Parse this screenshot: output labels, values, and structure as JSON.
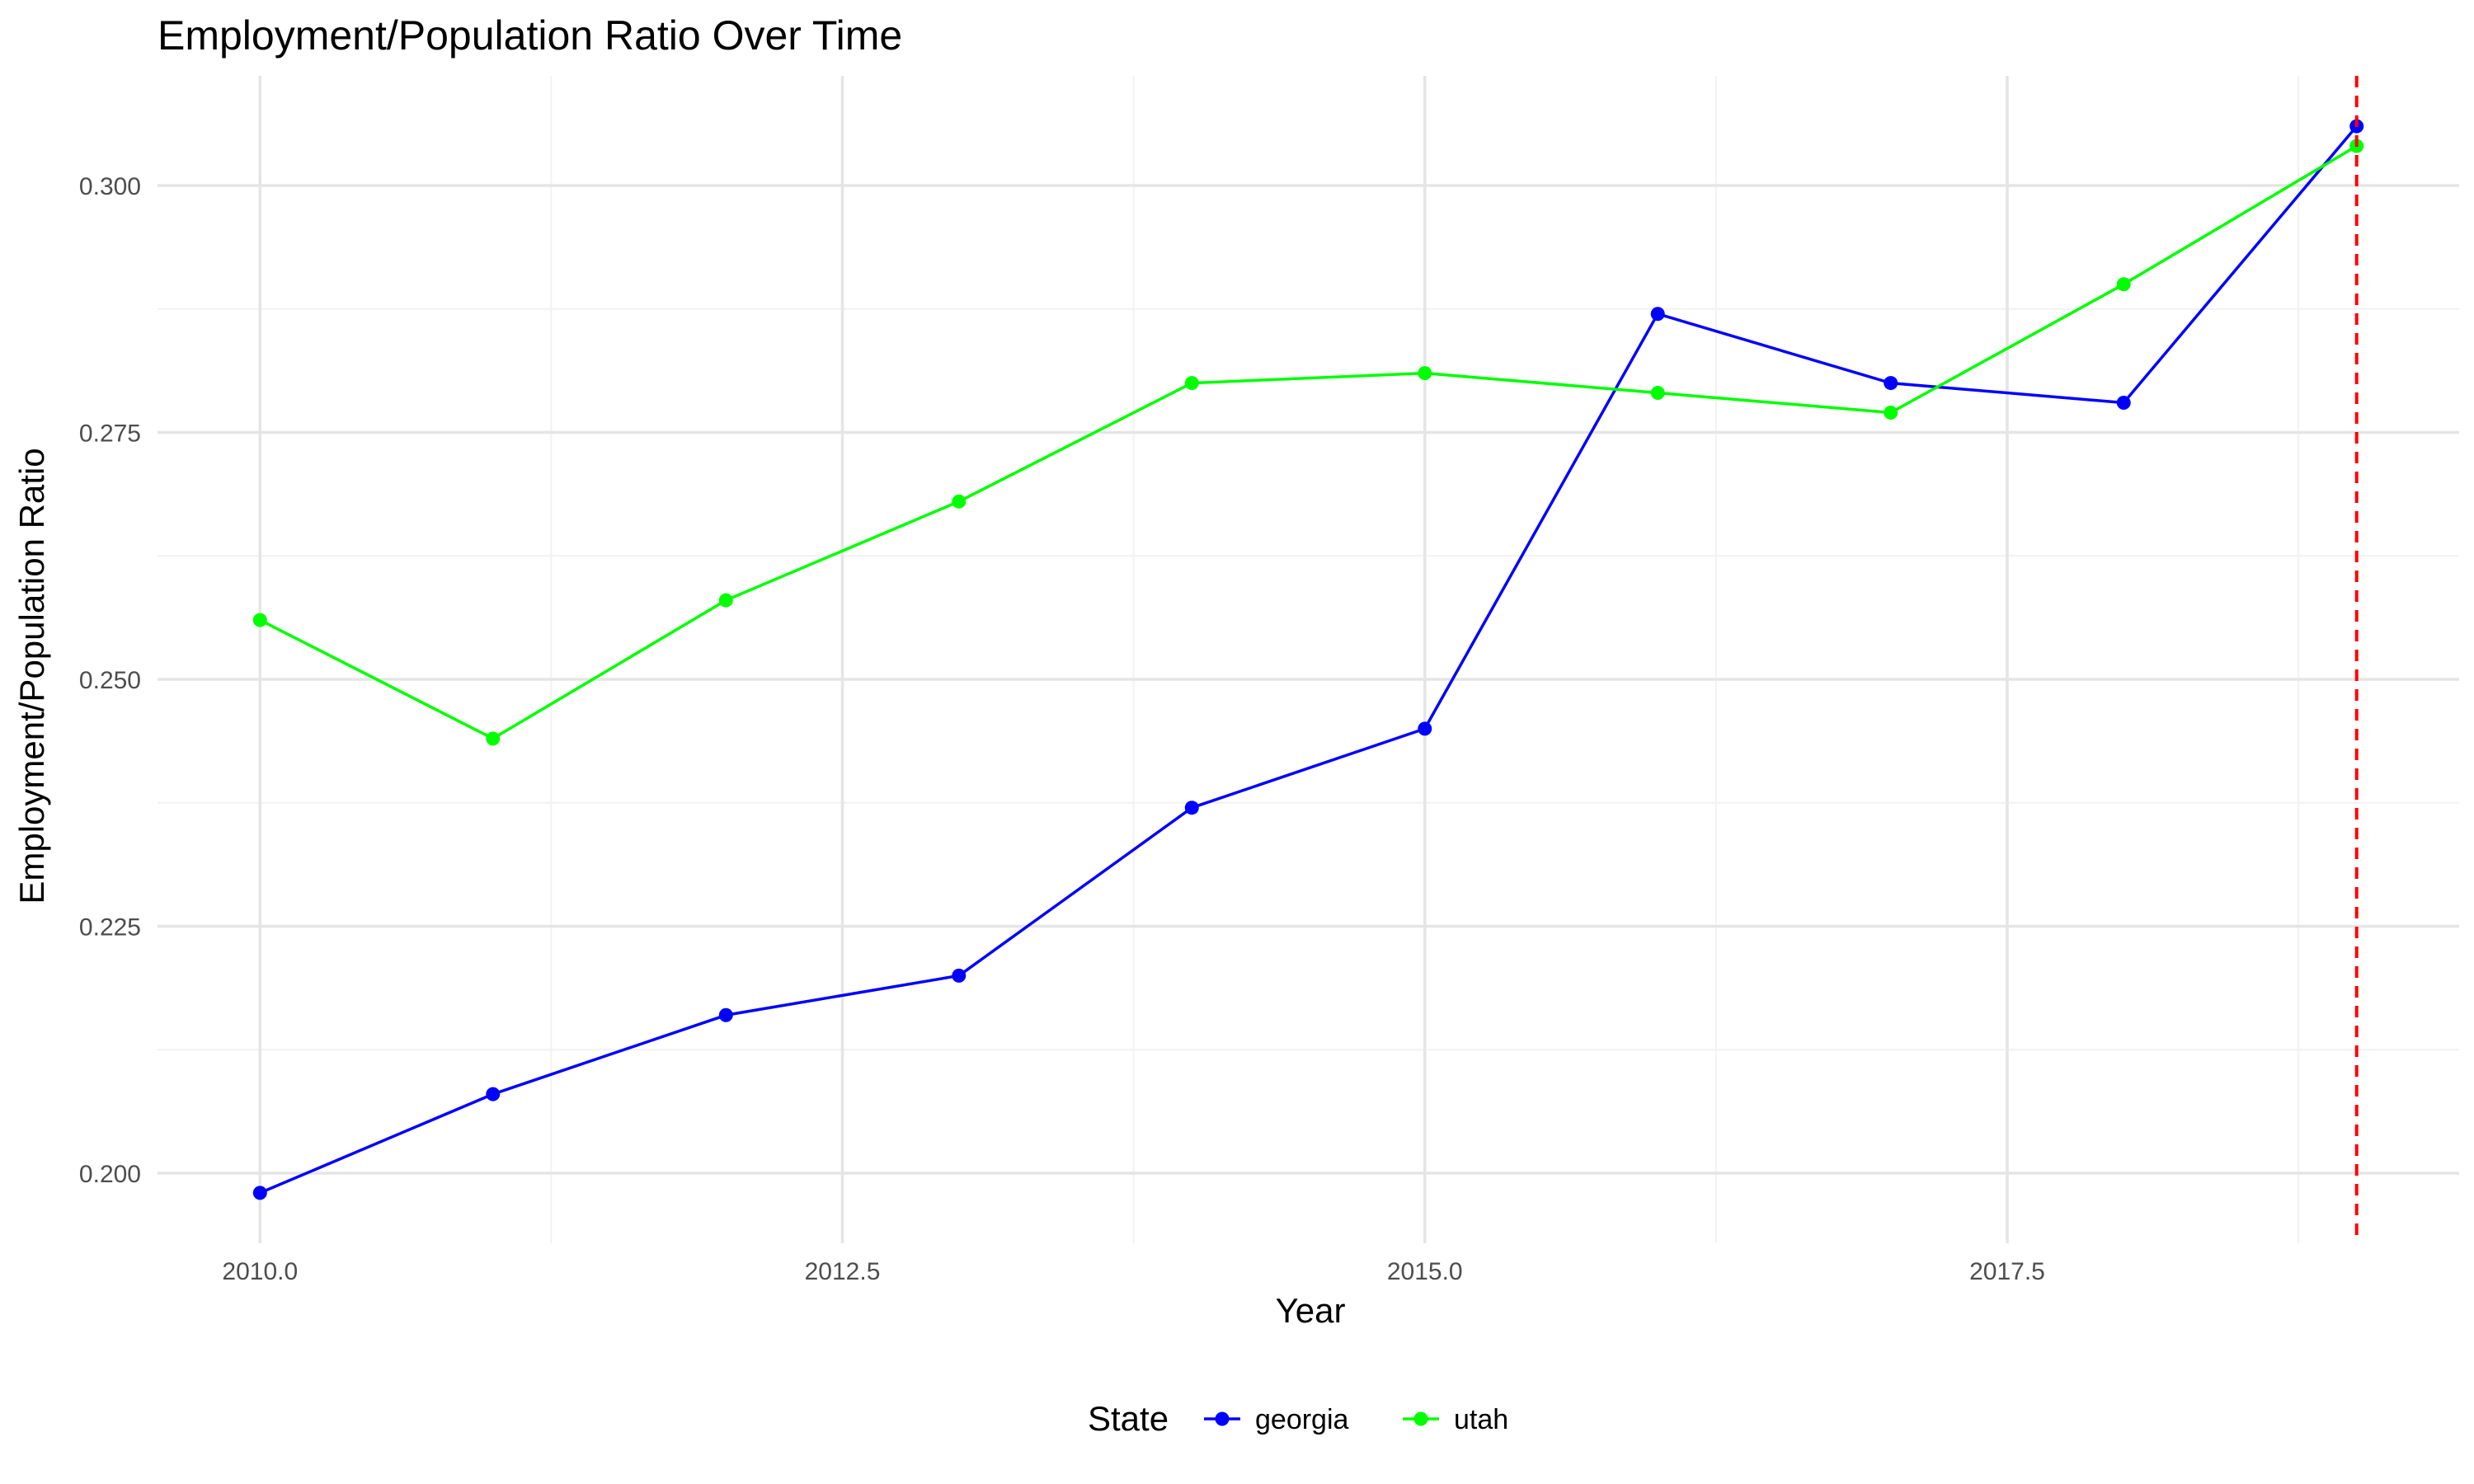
{
  "chart_data": {
    "type": "line",
    "title": "Employment/Population Ratio Over Time",
    "xlabel": "Year",
    "ylabel": "Employment/Population Ratio",
    "xlim": [
      2009.56,
      2019.44
    ],
    "ylim": [
      0.1929,
      0.3111
    ],
    "x_ticks": [
      2010.0,
      2012.5,
      2015.0,
      2017.5
    ],
    "x_tick_labels": [
      "2010.0",
      "2012.5",
      "2015.0",
      "2017.5"
    ],
    "y_ticks": [
      0.2,
      0.225,
      0.25,
      0.275,
      0.3
    ],
    "y_tick_labels": [
      "0.200",
      "0.225",
      "0.250",
      "0.275",
      "0.300"
    ],
    "grid": true,
    "legend": {
      "title": "State",
      "position": "bottom"
    },
    "x": [
      2010,
      2011,
      2012,
      2013,
      2014,
      2015,
      2016,
      2017,
      2018,
      2019
    ],
    "series": [
      {
        "name": "georgia",
        "color": "#0000ff",
        "values": [
          0.198,
          0.208,
          0.216,
          0.22,
          0.237,
          0.245,
          0.287,
          0.28,
          0.278,
          0.306
        ]
      },
      {
        "name": "utah",
        "color": "#00ff00",
        "values": [
          0.256,
          0.244,
          0.258,
          0.268,
          0.28,
          0.281,
          0.279,
          0.277,
          0.29,
          0.304
        ]
      }
    ],
    "reference_line": {
      "x": 2019,
      "color": "#ff0000",
      "style": "dashed"
    }
  }
}
